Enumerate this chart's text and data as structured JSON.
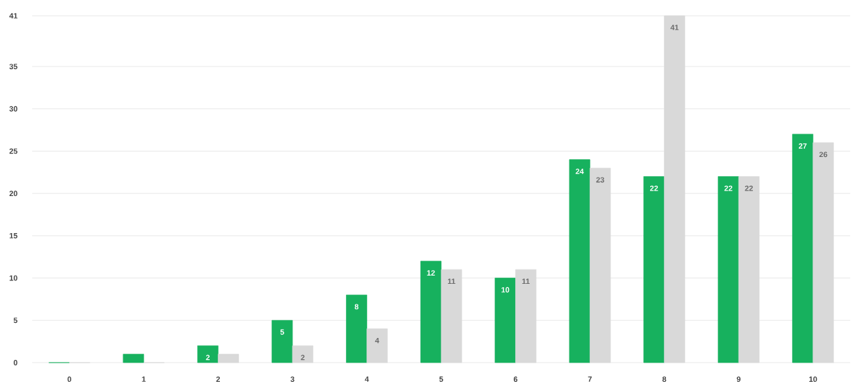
{
  "chart_data": {
    "type": "bar",
    "categories": [
      "0",
      "1",
      "2",
      "3",
      "4",
      "5",
      "6",
      "7",
      "8",
      "9",
      "10"
    ],
    "series": [
      {
        "color": "#17b15e",
        "values": [
          0,
          1,
          2,
          5,
          8,
          12,
          10,
          24,
          22,
          22,
          27
        ],
        "value_labels": [
          null,
          null,
          "2",
          "5",
          "8",
          "12",
          "10",
          "24",
          "22",
          "22",
          "27"
        ]
      },
      {
        "color": "#d9d9d9",
        "values": [
          0,
          0,
          1,
          2,
          4,
          11,
          11,
          23,
          41,
          22,
          26
        ],
        "value_labels": [
          null,
          null,
          null,
          "2",
          "4",
          "11",
          "11",
          "23",
          "41",
          "22",
          "26"
        ]
      }
    ],
    "ylim": [
      0,
      41
    ],
    "yticks": [
      0,
      5,
      10,
      15,
      20,
      25,
      30,
      35,
      41
    ],
    "grid": "y"
  }
}
